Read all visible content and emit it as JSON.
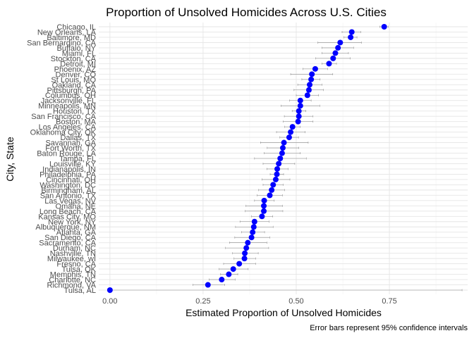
{
  "chart_data": {
    "type": "scatter",
    "title": "Proportion of Unsolved Homicides Across U.S. Cities",
    "xlabel": "Estimated Proportion of Unsolved Homicides",
    "ylabel": "City, State",
    "caption": "Error bars represent 95% confidence intervals",
    "xlim": [
      -0.03,
      0.96
    ],
    "xticks": [
      0,
      0.25,
      0.5,
      0.75
    ],
    "xtick_labels": [
      "0.00",
      "0.25",
      "0.50",
      "0.75"
    ],
    "grid": true,
    "error_bars": "95% confidence intervals",
    "point_color": "#0000ff",
    "cities": [
      {
        "name": "Chicago, IL",
        "estimate": 0.736,
        "lower": 0.724,
        "upper": 0.747
      },
      {
        "name": "New Orleans, LA",
        "estimate": 0.649,
        "lower": 0.623,
        "upper": 0.673
      },
      {
        "name": "Baltimore, MD",
        "estimate": 0.646,
        "lower": 0.628,
        "upper": 0.663
      },
      {
        "name": "San Bernardino, CA",
        "estimate": 0.618,
        "lower": 0.558,
        "upper": 0.675
      },
      {
        "name": "Buffalo, NY",
        "estimate": 0.612,
        "lower": 0.569,
        "upper": 0.654
      },
      {
        "name": "Miami, FL",
        "estimate": 0.605,
        "lower": 0.569,
        "upper": 0.64
      },
      {
        "name": "Stockton, CA",
        "estimate": 0.599,
        "lower": 0.552,
        "upper": 0.645
      },
      {
        "name": "Detroit, MI",
        "estimate": 0.588,
        "lower": 0.569,
        "upper": 0.608
      },
      {
        "name": "Phoenix, AZ",
        "estimate": 0.551,
        "lower": 0.518,
        "upper": 0.584
      },
      {
        "name": "Denver, CO",
        "estimate": 0.542,
        "lower": 0.485,
        "upper": 0.598
      },
      {
        "name": "St Louis, MO",
        "estimate": 0.54,
        "lower": 0.515,
        "upper": 0.564
      },
      {
        "name": "Oakland, CA",
        "estimate": 0.536,
        "lower": 0.504,
        "upper": 0.569
      },
      {
        "name": "Pittsburgh, PA",
        "estimate": 0.534,
        "lower": 0.494,
        "upper": 0.573
      },
      {
        "name": "Columbus, OH",
        "estimate": 0.53,
        "lower": 0.5,
        "upper": 0.56
      },
      {
        "name": "Jacksonville, FL",
        "estimate": 0.511,
        "lower": 0.482,
        "upper": 0.54
      },
      {
        "name": "Minneapolis, MN",
        "estimate": 0.511,
        "lower": 0.459,
        "upper": 0.563
      },
      {
        "name": "Houston, TX",
        "estimate": 0.507,
        "lower": 0.489,
        "upper": 0.526
      },
      {
        "name": "San Francisco, CA",
        "estimate": 0.507,
        "lower": 0.468,
        "upper": 0.545
      },
      {
        "name": "Boston, MA",
        "estimate": 0.505,
        "lower": 0.465,
        "upper": 0.545
      },
      {
        "name": "Los Angeles, CA",
        "estimate": 0.49,
        "lower": 0.469,
        "upper": 0.511
      },
      {
        "name": "Oklahoma City, OK",
        "estimate": 0.485,
        "lower": 0.447,
        "upper": 0.524
      },
      {
        "name": "Dallas, TX",
        "estimate": 0.481,
        "lower": 0.456,
        "upper": 0.506
      },
      {
        "name": "Savannah, GA",
        "estimate": 0.467,
        "lower": 0.404,
        "upper": 0.532
      },
      {
        "name": "Fort Worth, TX",
        "estimate": 0.464,
        "lower": 0.422,
        "upper": 0.507
      },
      {
        "name": "Baton Rouge, LA",
        "estimate": 0.462,
        "lower": 0.414,
        "upper": 0.511
      },
      {
        "name": "Tampa, FL",
        "estimate": 0.457,
        "lower": 0.388,
        "upper": 0.527
      },
      {
        "name": "Louisville, KY",
        "estimate": 0.453,
        "lower": 0.411,
        "upper": 0.496
      },
      {
        "name": "Indianapolis, IN",
        "estimate": 0.449,
        "lower": 0.421,
        "upper": 0.478
      },
      {
        "name": "Philadelphia, PA",
        "estimate": 0.448,
        "lower": 0.43,
        "upper": 0.466
      },
      {
        "name": "Cincinnati, OH",
        "estimate": 0.445,
        "lower": 0.408,
        "upper": 0.483
      },
      {
        "name": "Washington, DC",
        "estimate": 0.438,
        "lower": 0.411,
        "upper": 0.465
      },
      {
        "name": "Birmingham, AL",
        "estimate": 0.434,
        "lower": 0.399,
        "upper": 0.469
      },
      {
        "name": "San Antonio, TX",
        "estimate": 0.429,
        "lower": 0.395,
        "upper": 0.463
      },
      {
        "name": "Las Vegas, NV",
        "estimate": 0.414,
        "lower": 0.388,
        "upper": 0.441
      },
      {
        "name": "Omaha, NE",
        "estimate": 0.413,
        "lower": 0.365,
        "upper": 0.463
      },
      {
        "name": "Long Beach, CA",
        "estimate": 0.413,
        "lower": 0.363,
        "upper": 0.464
      },
      {
        "name": "Kansas City, MO",
        "estimate": 0.408,
        "lower": 0.38,
        "upper": 0.437
      },
      {
        "name": "New York, NY",
        "estimate": 0.388,
        "lower": 0.349,
        "upper": 0.427
      },
      {
        "name": "Albuquerque, NM",
        "estimate": 0.386,
        "lower": 0.337,
        "upper": 0.438
      },
      {
        "name": "Atlanta, GA",
        "estimate": 0.383,
        "lower": 0.353,
        "upper": 0.415
      },
      {
        "name": "San Diego, CA",
        "estimate": 0.38,
        "lower": 0.335,
        "upper": 0.429
      },
      {
        "name": "Sacramento, CA",
        "estimate": 0.37,
        "lower": 0.321,
        "upper": 0.421
      },
      {
        "name": "Durham, NC",
        "estimate": 0.366,
        "lower": 0.31,
        "upper": 0.426
      },
      {
        "name": "Nashville, TN",
        "estimate": 0.362,
        "lower": 0.329,
        "upper": 0.398
      },
      {
        "name": "Milwaukee, wI",
        "estimate": 0.361,
        "lower": 0.333,
        "upper": 0.391
      },
      {
        "name": "Fresno, CA",
        "estimate": 0.347,
        "lower": 0.305,
        "upper": 0.391
      },
      {
        "name": "Tulsa, OK",
        "estimate": 0.331,
        "lower": 0.293,
        "upper": 0.371
      },
      {
        "name": "Memphis, TN",
        "estimate": 0.319,
        "lower": 0.297,
        "upper": 0.343
      },
      {
        "name": "Charlotte, NC",
        "estimate": 0.3,
        "lower": 0.266,
        "upper": 0.336
      },
      {
        "name": "Richmond, VA",
        "estimate": 0.263,
        "lower": 0.223,
        "upper": 0.308
      },
      {
        "name": "Tulsa, AL",
        "estimate": 0.0,
        "lower": 0.0,
        "upper": 0.945
      }
    ]
  }
}
